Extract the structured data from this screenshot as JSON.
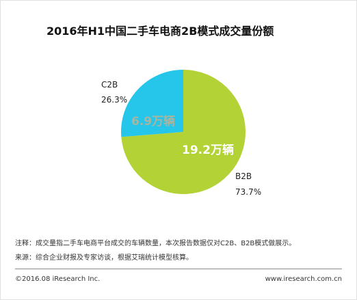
{
  "title": "2016年H1中国二手车电商2B模式成交量份额",
  "chart_data": {
    "type": "pie",
    "title": "2016年H1中国二手车电商2B模式成交量份额",
    "slices": [
      {
        "name": "C2B",
        "percent_label": "26.3%",
        "value_label": "6.9万辆",
        "value": 26.3,
        "volume": 6.9,
        "unit": "万辆",
        "color": "#26c5ea",
        "value_label_color": "#a8b5a0"
      },
      {
        "name": "B2B",
        "percent_label": "73.7%",
        "value_label": "19.2万辆",
        "value": 73.7,
        "volume": 19.2,
        "unit": "万辆",
        "color": "#b2d235",
        "value_label_color": "#ffffff"
      }
    ]
  },
  "notes": {
    "note": "注释：成交量指二手车电商平台成交的车辆数量，本次报告数据仅对C2B、B2B模式做展示。",
    "source": "来源：综合企业财报及专家访谈，根据艾瑞统计模型核算。"
  },
  "footer": {
    "copyright": "©2016.08 iResearch Inc.",
    "website": "www.iresearch.com.cn"
  }
}
